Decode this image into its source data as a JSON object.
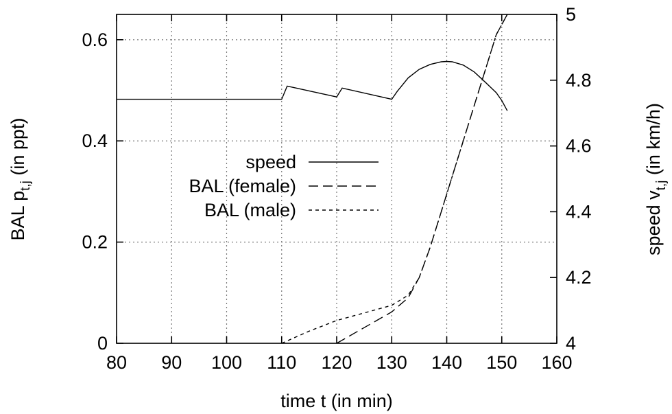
{
  "chart_data": {
    "type": "line",
    "x_axis": {
      "label": "time t (in min)",
      "range": [
        80,
        160
      ],
      "ticks": [
        80,
        90,
        100,
        110,
        120,
        130,
        140,
        150,
        160
      ]
    },
    "y_axis_left": {
      "label": "BAL p",
      "label_sub": "t,j",
      "label_suffix": " (in ppt)",
      "range": [
        0,
        0.65
      ],
      "ticks": [
        0,
        0.2,
        0.4,
        0.6
      ],
      "tick_labels": [
        "0",
        "0.2",
        "0.4",
        "0.6"
      ]
    },
    "y_axis_right": {
      "label": "speed v",
      "label_sub": "t,j",
      "label_suffix": " (in km/h)",
      "range": [
        4,
        5
      ],
      "ticks": [
        4,
        4.2,
        4.4,
        4.6,
        4.8,
        5
      ],
      "tick_labels": [
        "4",
        "4.2",
        "4.4",
        "4.6",
        "4.8",
        "5"
      ]
    },
    "grid": true,
    "legend_position": "center",
    "series": [
      {
        "name": "speed",
        "axis": "right",
        "dash": "",
        "x": [
          80,
          110,
          111,
          120,
          121,
          130,
          131,
          133,
          135,
          137,
          139,
          140,
          141,
          143,
          145,
          147,
          149,
          150,
          151
        ],
        "y": [
          4.742,
          4.742,
          4.782,
          4.749,
          4.776,
          4.742,
          4.766,
          4.807,
          4.833,
          4.848,
          4.856,
          4.857,
          4.856,
          4.846,
          4.825,
          4.794,
          4.762,
          4.738,
          4.707
        ]
      },
      {
        "name": "BAL (female)",
        "axis": "left",
        "dash": "14 7",
        "x": [
          120,
          125,
          130,
          133,
          135,
          137,
          139,
          141,
          143,
          145,
          147,
          149,
          150,
          151
        ],
        "y": [
          0.0,
          0.031,
          0.062,
          0.09,
          0.13,
          0.19,
          0.26,
          0.33,
          0.4,
          0.47,
          0.54,
          0.61,
          0.63,
          0.65
        ]
      },
      {
        "name": "BAL (male)",
        "axis": "left",
        "dash": "5 5",
        "x": [
          110,
          115,
          120,
          125,
          130,
          133,
          135,
          137,
          139,
          141,
          143,
          145,
          147,
          149,
          150,
          151
        ],
        "y": [
          0.0,
          0.024,
          0.045,
          0.06,
          0.075,
          0.095,
          0.13,
          0.19,
          0.26,
          0.33,
          0.4,
          0.47,
          0.54,
          0.61,
          0.63,
          0.65
        ]
      }
    ]
  }
}
